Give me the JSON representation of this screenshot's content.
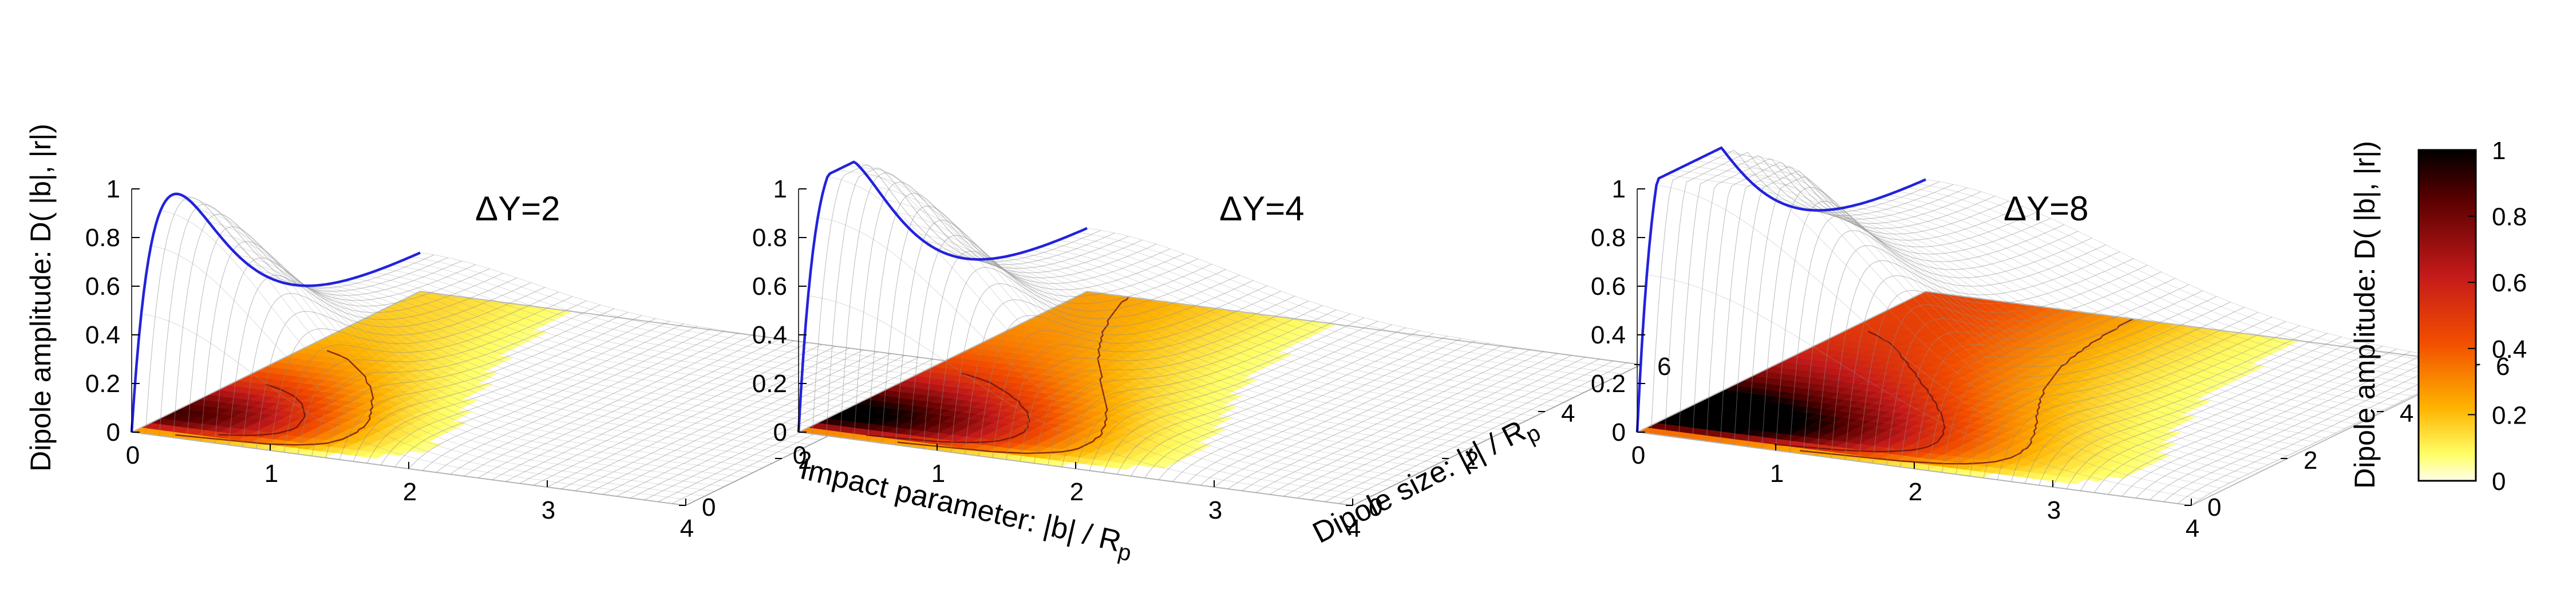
{
  "figure": {
    "z_axis_label": "Dipole amplitude: D( |b|, |r|)",
    "x_axis_label_main": "Impact parameter: |b| / R",
    "x_axis_label_sub": "p",
    "y_axis_label_main": "Dipole size: |r| / R",
    "y_axis_label_sub": "p",
    "colorbar_label": "Dipole amplitude: D( |b|, |r|)"
  },
  "chart_data": [
    {
      "type": "surface3d",
      "title": "ΔY=2",
      "x_ticks": [
        "0",
        "1",
        "2",
        "3",
        "4"
      ],
      "y_ticks": [
        "0",
        "2",
        "4",
        "6"
      ],
      "z_ticks": [
        "0",
        "0.2",
        "0.4",
        "0.6",
        "0.8",
        "1"
      ],
      "xlim": [
        0,
        4
      ],
      "ylim": [
        0,
        6
      ],
      "zlim": [
        0,
        1
      ],
      "peak_amplitude": 0.82,
      "peak_r": 0.8,
      "tail_amplitude": 0.15,
      "width_b": 0.8
    },
    {
      "type": "surface3d",
      "title": "ΔY=4",
      "x_ticks": [
        "0",
        "1",
        "2",
        "3",
        "4"
      ],
      "y_ticks": [
        "0",
        "2",
        "4",
        "6"
      ],
      "z_ticks": [
        "0",
        "0.2",
        "0.4",
        "0.6",
        "0.8",
        "1"
      ],
      "xlim": [
        0,
        4
      ],
      "ylim": [
        0,
        6
      ],
      "zlim": [
        0,
        1
      ],
      "peak_amplitude": 0.92,
      "peak_r": 0.8,
      "tail_amplitude": 0.25,
      "width_b": 1.05
    },
    {
      "type": "surface3d",
      "title": "ΔY=8",
      "x_ticks": [
        "0",
        "1",
        "2",
        "3",
        "4"
      ],
      "y_ticks": [
        "0",
        "2",
        "4",
        "6"
      ],
      "z_ticks": [
        "0",
        "0.2",
        "0.4",
        "0.6",
        "0.8",
        "1"
      ],
      "xlim": [
        0,
        4
      ],
      "ylim": [
        0,
        6
      ],
      "zlim": [
        0,
        1
      ],
      "peak_amplitude": 1.0,
      "peak_r": 0.8,
      "tail_amplitude": 0.45,
      "width_b": 1.35
    }
  ],
  "colorbar": {
    "ticks": [
      "1",
      "0.8",
      "0.6",
      "0.4",
      "0.2",
      "0"
    ],
    "range": [
      0,
      1
    ],
    "colors": [
      "#000000",
      "#5a0000",
      "#c41a1a",
      "#f24d00",
      "#ffb300",
      "#ffff66",
      "#ffffe8"
    ]
  }
}
